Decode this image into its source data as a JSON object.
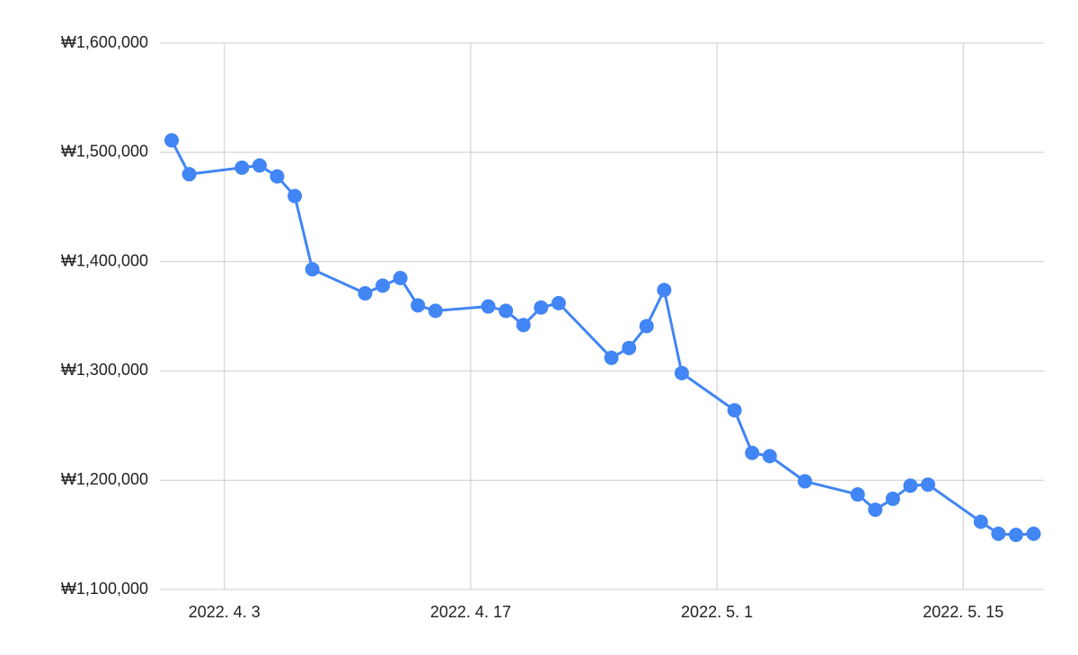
{
  "chart_data": {
    "type": "line",
    "color": "#4285f4",
    "grid": true,
    "x": [
      "2022-03-31",
      "2022-04-01",
      "2022-04-04",
      "2022-04-05",
      "2022-04-06",
      "2022-04-07",
      "2022-04-08",
      "2022-04-11",
      "2022-04-12",
      "2022-04-13",
      "2022-04-14",
      "2022-04-15",
      "2022-04-18",
      "2022-04-19",
      "2022-04-20",
      "2022-04-21",
      "2022-04-22",
      "2022-04-25",
      "2022-04-26",
      "2022-04-27",
      "2022-04-28",
      "2022-04-29",
      "2022-05-02",
      "2022-05-03",
      "2022-05-04",
      "2022-05-06",
      "2022-05-09",
      "2022-05-10",
      "2022-05-11",
      "2022-05-12",
      "2022-05-13",
      "2022-05-16",
      "2022-05-17",
      "2022-05-18",
      "2022-05-19"
    ],
    "values": [
      1511000,
      1480000,
      1486000,
      1488000,
      1478000,
      1460000,
      1393000,
      1371000,
      1378000,
      1385000,
      1360000,
      1355000,
      1359000,
      1355000,
      1342000,
      1358000,
      1362000,
      1312000,
      1321000,
      1341000,
      1374000,
      1298000,
      1264000,
      1225000,
      1222000,
      1199000,
      1187000,
      1173000,
      1183000,
      1195000,
      1196000,
      1162000,
      1151000,
      1150000,
      1151000
    ],
    "xlim": [
      "2022-03-30T08:00",
      "2022-05-19T14:00"
    ],
    "xticks": [
      {
        "value": "2022-04-03",
        "label": "2022. 4. 3"
      },
      {
        "value": "2022-04-17",
        "label": "2022. 4. 17"
      },
      {
        "value": "2022-05-01",
        "label": "2022. 5. 1"
      },
      {
        "value": "2022-05-15",
        "label": "2022. 5. 15"
      }
    ],
    "ylim": [
      1100000,
      1600000
    ],
    "yticks": [
      {
        "value": 1100000,
        "label": "₩1,100,000"
      },
      {
        "value": 1200000,
        "label": "₩1,200,000"
      },
      {
        "value": 1300000,
        "label": "₩1,300,000"
      },
      {
        "value": 1400000,
        "label": "₩1,400,000"
      },
      {
        "value": 1500000,
        "label": "₩1,500,000"
      },
      {
        "value": 1600000,
        "label": "₩1,600,000"
      }
    ]
  }
}
